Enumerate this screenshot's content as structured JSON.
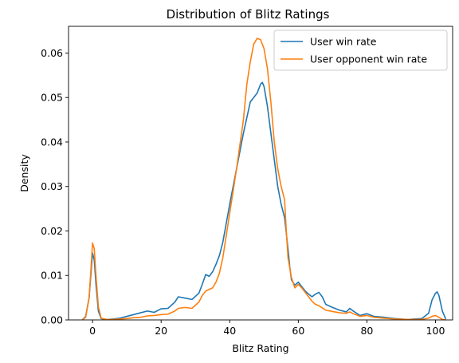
{
  "chart_data": {
    "type": "line",
    "title": "Distribution of Blitz Ratings",
    "xlabel": "Blitz Rating",
    "ylabel": "Density",
    "xlim": [
      -7,
      105
    ],
    "ylim": [
      0,
      0.066
    ],
    "xticks": [
      0,
      20,
      40,
      60,
      80,
      100
    ],
    "xtick_labels": [
      "0",
      "20",
      "40",
      "60",
      "80",
      "100"
    ],
    "yticks": [
      0,
      0.01,
      0.02,
      0.03,
      0.04,
      0.05,
      0.06
    ],
    "ytick_labels": [
      "0.00",
      "0.01",
      "0.02",
      "0.03",
      "0.04",
      "0.05",
      "0.06"
    ],
    "grid": false,
    "legend_position": "top-right",
    "series": [
      {
        "name": "User win rate",
        "color": "#1f77b4",
        "points": [
          [
            -3,
            0.0
          ],
          [
            -2,
            0.0008
          ],
          [
            -1,
            0.005
          ],
          [
            -0.5,
            0.01
          ],
          [
            0,
            0.015
          ],
          [
            0.5,
            0.0135
          ],
          [
            1,
            0.008
          ],
          [
            1.7,
            0.002
          ],
          [
            2.5,
            0.0003
          ],
          [
            4,
            0.0001
          ],
          [
            6,
            0.0002
          ],
          [
            8,
            0.0004
          ],
          [
            10,
            0.0008
          ],
          [
            12,
            0.0012
          ],
          [
            14,
            0.0016
          ],
          [
            16,
            0.002
          ],
          [
            18,
            0.0017
          ],
          [
            20,
            0.0025
          ],
          [
            22,
            0.0026
          ],
          [
            24,
            0.004
          ],
          [
            25,
            0.0052
          ],
          [
            27,
            0.0049
          ],
          [
            29,
            0.0046
          ],
          [
            31,
            0.006
          ],
          [
            32,
            0.008
          ],
          [
            33,
            0.0102
          ],
          [
            34,
            0.0098
          ],
          [
            35,
            0.0108
          ],
          [
            36,
            0.0125
          ],
          [
            37,
            0.0145
          ],
          [
            38,
            0.0175
          ],
          [
            40,
            0.026
          ],
          [
            42,
            0.034
          ],
          [
            44,
            0.042
          ],
          [
            46,
            0.049
          ],
          [
            47,
            0.05
          ],
          [
            48,
            0.051
          ],
          [
            49,
            0.053
          ],
          [
            49.5,
            0.0534
          ],
          [
            50,
            0.0525
          ],
          [
            51,
            0.048
          ],
          [
            52,
            0.042
          ],
          [
            53,
            0.036
          ],
          [
            54,
            0.03
          ],
          [
            55,
            0.026
          ],
          [
            56,
            0.023
          ],
          [
            57,
            0.016
          ],
          [
            57.5,
            0.012
          ],
          [
            58,
            0.009
          ],
          [
            59,
            0.0078
          ],
          [
            60,
            0.0085
          ],
          [
            61,
            0.0075
          ],
          [
            62,
            0.0065
          ],
          [
            63,
            0.0058
          ],
          [
            64,
            0.0052
          ],
          [
            65,
            0.0058
          ],
          [
            66,
            0.0062
          ],
          [
            67,
            0.0052
          ],
          [
            68,
            0.0035
          ],
          [
            70,
            0.0028
          ],
          [
            72,
            0.0022
          ],
          [
            74,
            0.0018
          ],
          [
            75,
            0.0026
          ],
          [
            76,
            0.002
          ],
          [
            78,
            0.001
          ],
          [
            80,
            0.0014
          ],
          [
            82,
            0.0008
          ],
          [
            85,
            0.0006
          ],
          [
            88,
            0.0003
          ],
          [
            92,
            0.0001
          ],
          [
            96,
            0.0003
          ],
          [
            98,
            0.0015
          ],
          [
            99,
            0.0045
          ],
          [
            100,
            0.006
          ],
          [
            100.5,
            0.0063
          ],
          [
            101,
            0.0055
          ],
          [
            102,
            0.002
          ],
          [
            103,
            0.0002
          ]
        ]
      },
      {
        "name": "User opponent win rate",
        "color": "#ff7f0e",
        "points": [
          [
            -3,
            0.0
          ],
          [
            -2,
            0.0006
          ],
          [
            -1,
            0.005
          ],
          [
            -0.5,
            0.011
          ],
          [
            0,
            0.0173
          ],
          [
            0.5,
            0.016
          ],
          [
            1,
            0.01
          ],
          [
            1.7,
            0.003
          ],
          [
            2.5,
            0.0004
          ],
          [
            4,
            0.0001
          ],
          [
            6,
            0.0001
          ],
          [
            8,
            0.0002
          ],
          [
            10,
            0.0003
          ],
          [
            12,
            0.0005
          ],
          [
            14,
            0.0006
          ],
          [
            16,
            0.0009
          ],
          [
            18,
            0.001
          ],
          [
            20,
            0.0012
          ],
          [
            22,
            0.0013
          ],
          [
            24,
            0.002
          ],
          [
            25,
            0.0026
          ],
          [
            27,
            0.0028
          ],
          [
            29,
            0.0026
          ],
          [
            31,
            0.004
          ],
          [
            32,
            0.0055
          ],
          [
            33,
            0.0065
          ],
          [
            35,
            0.0072
          ],
          [
            36,
            0.0085
          ],
          [
            37,
            0.0105
          ],
          [
            38,
            0.014
          ],
          [
            40,
            0.024
          ],
          [
            42,
            0.034
          ],
          [
            44,
            0.045
          ],
          [
            45,
            0.053
          ],
          [
            46,
            0.058
          ],
          [
            47,
            0.062
          ],
          [
            48,
            0.0633
          ],
          [
            49,
            0.063
          ],
          [
            50,
            0.061
          ],
          [
            51,
            0.0565
          ],
          [
            52,
            0.049
          ],
          [
            53,
            0.04
          ],
          [
            54,
            0.034
          ],
          [
            55,
            0.03
          ],
          [
            56,
            0.027
          ],
          [
            56.5,
            0.02
          ],
          [
            57,
            0.014
          ],
          [
            58,
            0.0095
          ],
          [
            59,
            0.0072
          ],
          [
            60,
            0.008
          ],
          [
            61,
            0.0072
          ],
          [
            62,
            0.0062
          ],
          [
            63,
            0.0052
          ],
          [
            64,
            0.0042
          ],
          [
            65,
            0.0035
          ],
          [
            66,
            0.0032
          ],
          [
            68,
            0.0022
          ],
          [
            70,
            0.0019
          ],
          [
            72,
            0.0016
          ],
          [
            74,
            0.0015
          ],
          [
            75,
            0.0018
          ],
          [
            76,
            0.0014
          ],
          [
            78,
            0.0008
          ],
          [
            80,
            0.001
          ],
          [
            82,
            0.0006
          ],
          [
            85,
            0.0004
          ],
          [
            88,
            0.0002
          ],
          [
            92,
            0.0001
          ],
          [
            96,
            0.0001
          ],
          [
            98,
            0.0004
          ],
          [
            99,
            0.0008
          ],
          [
            100,
            0.001
          ],
          [
            101,
            0.0006
          ],
          [
            102,
            0.0001
          ],
          [
            103,
            0.0
          ]
        ]
      }
    ]
  }
}
